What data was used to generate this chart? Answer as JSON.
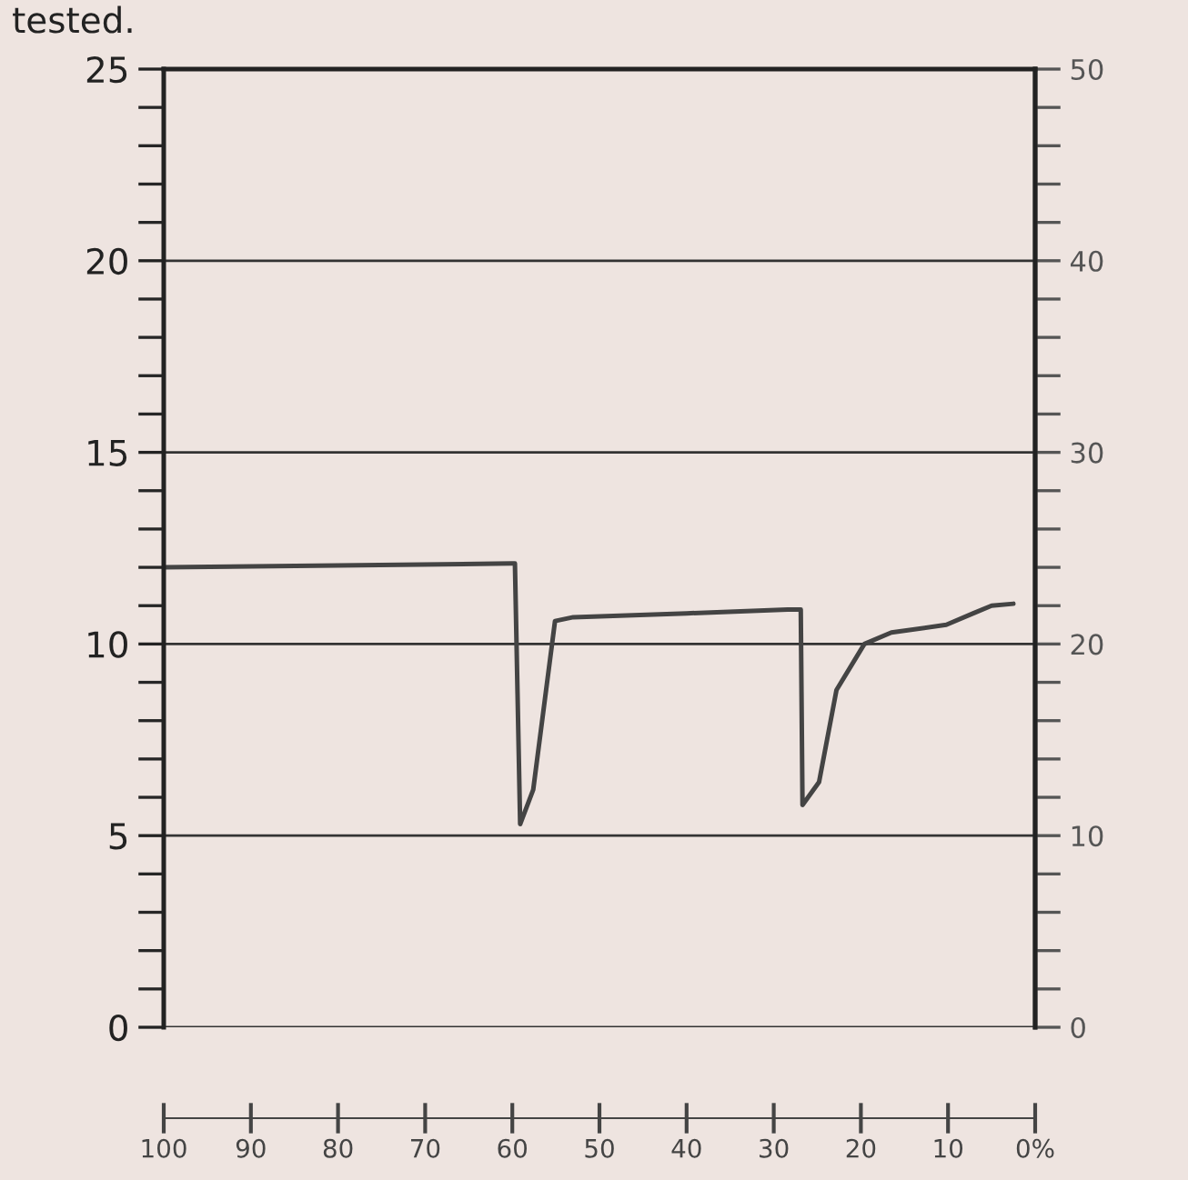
{
  "chart_data": {
    "type": "line",
    "annotations": [
      "tested."
    ],
    "x": [
      100,
      80,
      60,
      59.7,
      59.1,
      57.6,
      55.1,
      53,
      40,
      28.4,
      26.9,
      26.7,
      24.8,
      22.8,
      19.6,
      16.5,
      10.2,
      7.1,
      5.0,
      2.5
    ],
    "series": [
      {
        "color": "#444444",
        "values": [
          12,
          12.05,
          12.1,
          12.1,
          5.3,
          6.2,
          10.6,
          10.7,
          10.8,
          10.9,
          10.9,
          5.8,
          6.4,
          8.8,
          10.0,
          10.3,
          10.5,
          10.8,
          11.0,
          11.05
        ]
      }
    ],
    "xlim": [
      100,
      0
    ],
    "xticks": [
      100,
      90,
      80,
      70,
      60,
      50,
      40,
      30,
      20,
      10,
      {
        "value": 0,
        "label": "0%"
      }
    ],
    "ylim": [
      0,
      25
    ],
    "yticks": [
      0,
      {
        "value": 1,
        "label": null
      },
      {
        "value": 2,
        "label": null
      },
      {
        "value": 3,
        "label": null
      },
      {
        "value": 4,
        "label": null
      },
      5,
      {
        "value": 6,
        "label": null
      },
      {
        "value": 7,
        "label": null
      },
      {
        "value": 8,
        "label": null
      },
      {
        "value": 9,
        "label": null
      },
      10,
      {
        "value": 11,
        "label": null
      },
      {
        "value": 12,
        "label": null
      },
      {
        "value": 13,
        "label": null
      },
      {
        "value": 14,
        "label": null
      },
      15,
      {
        "value": 16,
        "label": null
      },
      {
        "value": 17,
        "label": null
      },
      {
        "value": 18,
        "label": null
      },
      {
        "value": 19,
        "label": null
      },
      20,
      {
        "value": 21,
        "label": null
      },
      {
        "value": 22,
        "label": null
      },
      {
        "value": 23,
        "label": null
      },
      {
        "value": 24,
        "label": null
      },
      25
    ],
    "y2lim": [
      0,
      50
    ],
    "y2ticks": [
      0,
      {
        "value": 2,
        "label": null
      },
      {
        "value": 4,
        "label": null
      },
      {
        "value": 6,
        "label": null
      },
      {
        "value": 8,
        "label": null
      },
      10,
      {
        "value": 12,
        "label": null
      },
      {
        "value": 14,
        "label": null
      },
      {
        "value": 16,
        "label": null
      },
      {
        "value": 18,
        "label": null
      },
      20,
      {
        "value": 22,
        "label": null
      },
      {
        "value": 24,
        "label": null
      },
      {
        "value": 26,
        "label": null
      },
      {
        "value": 28,
        "label": null
      },
      30,
      {
        "value": 32,
        "label": null
      },
      {
        "value": 34,
        "label": null
      },
      {
        "value": 36,
        "label": null
      },
      {
        "value": 38,
        "label": null
      },
      40,
      {
        "value": 42,
        "label": null
      },
      {
        "value": 44,
        "label": null
      },
      {
        "value": 46,
        "label": null
      },
      {
        "value": 48,
        "label": null
      },
      50
    ],
    "grid": "y",
    "legend": false
  }
}
